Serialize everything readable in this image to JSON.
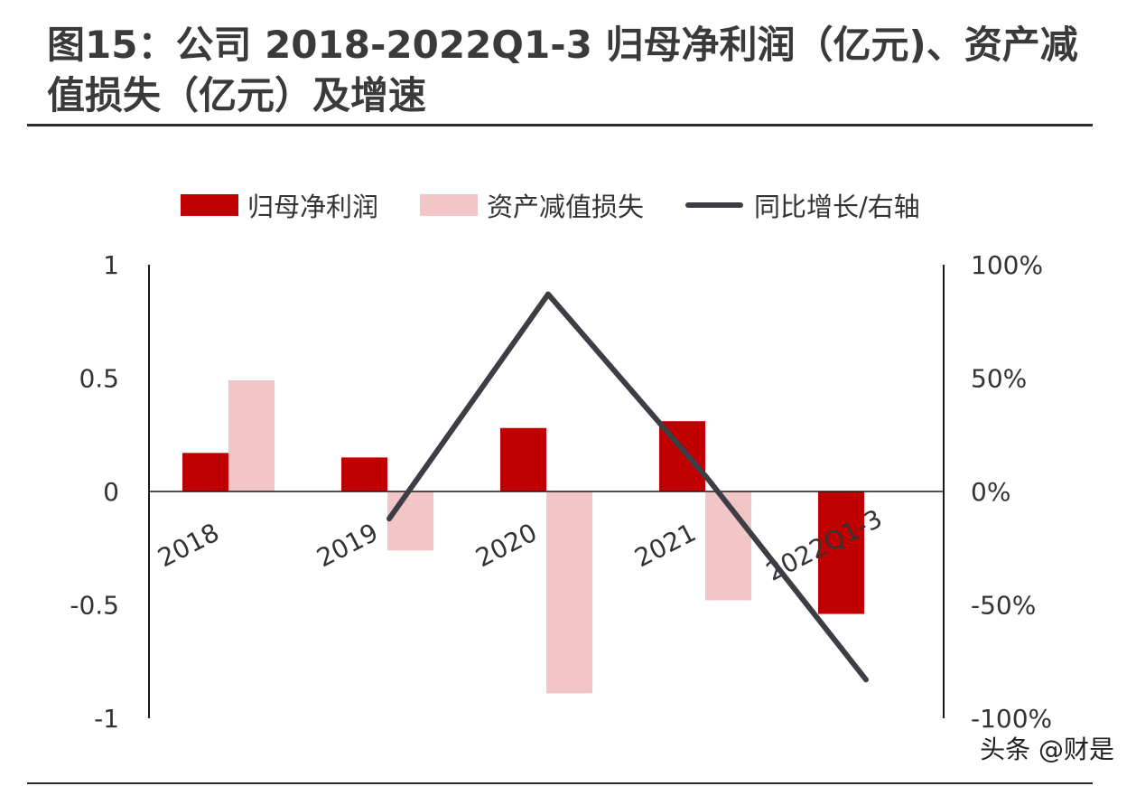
{
  "title": "图15：公司 2018-2022Q1-3 归母净利润（亿元)、资产减值损失（亿元）及增速",
  "watermark": "头条 @财是",
  "colors": {
    "net_profit": "#c00000",
    "impairment": "#f2c6c6",
    "growth": "#3d3d44",
    "axis": "#1a1a1a"
  },
  "chart_data": {
    "type": "bar",
    "categories": [
      "2018",
      "2019",
      "2020",
      "2021",
      "2022Q1-3"
    ],
    "series": [
      {
        "name": "归母净利润",
        "kind": "bar",
        "axis": "left",
        "values": [
          0.17,
          0.15,
          0.28,
          0.31,
          -0.54
        ]
      },
      {
        "name": "资产减值损失",
        "kind": "bar",
        "axis": "left",
        "values": [
          0.49,
          -0.26,
          -0.89,
          -0.48,
          null
        ]
      },
      {
        "name": "同比增长/右轴",
        "kind": "line",
        "axis": "right",
        "values": [
          null,
          -12,
          87,
          6,
          -83
        ]
      }
    ],
    "y_left": {
      "ylim": [
        -1,
        1
      ],
      "ticks": [
        "1",
        "0.5",
        "0",
        "-0.5",
        "-1"
      ],
      "tick_values": [
        1,
        0.5,
        0,
        -0.5,
        -1
      ]
    },
    "y_right": {
      "ylim": [
        -100,
        100
      ],
      "ticks": [
        "100%",
        "50%",
        "0%",
        "-50%",
        "-100%"
      ],
      "tick_values": [
        100,
        50,
        0,
        -50,
        -100
      ]
    },
    "legend_position": "top",
    "grid": false
  }
}
